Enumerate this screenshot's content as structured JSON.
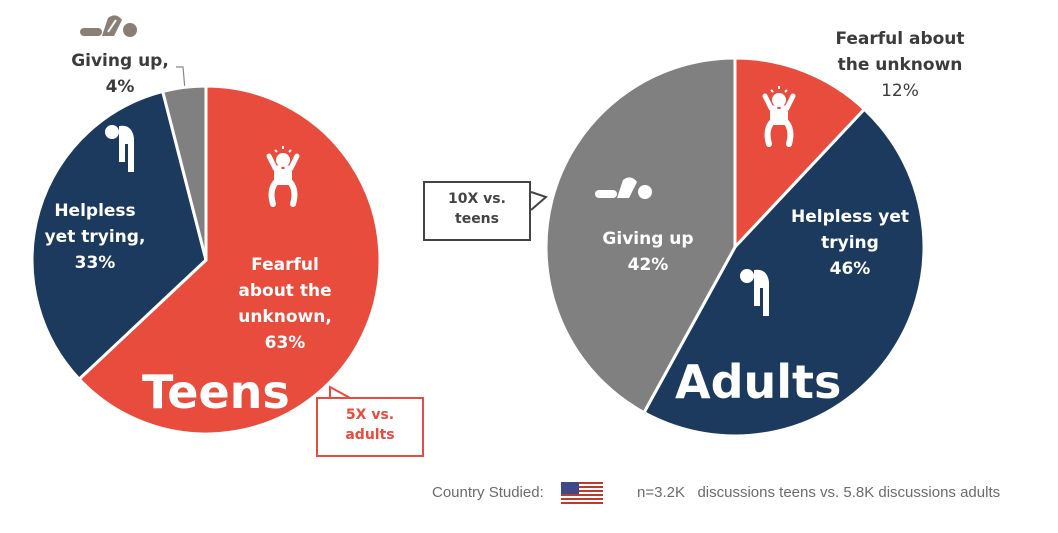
{
  "colors": {
    "fearful": "#E84C3D",
    "helpless": "#1B3A5E",
    "giving_up": "#808080"
  },
  "chart_data": [
    {
      "type": "pie",
      "title": "Teens",
      "categories": [
        "Fearful about the unknown",
        "Helpless yet trying",
        "Giving up"
      ],
      "values": [
        63,
        33,
        4
      ],
      "labels": {
        "fearful": [
          "Fearful",
          "about the",
          "unknown,",
          "63%"
        ],
        "helpless": [
          "Helpless",
          "yet trying,",
          "33%"
        ],
        "giving_up": [
          "Giving up,",
          "4%"
        ]
      },
      "callout": [
        "5X vs.",
        "adults"
      ]
    },
    {
      "type": "pie",
      "title": "Adults",
      "categories": [
        "Fearful about the unknown",
        "Helpless yet trying",
        "Giving up"
      ],
      "values": [
        12,
        46,
        42
      ],
      "labels": {
        "fearful": [
          "Fearful about",
          "the unknown",
          "12%"
        ],
        "helpless": [
          "Helpless yet",
          "trying",
          "46%"
        ],
        "giving_up": [
          "Giving up",
          "42%"
        ]
      },
      "callout": [
        "10X vs.",
        "teens"
      ]
    }
  ],
  "footer": {
    "country_label": "Country Studied:",
    "flag_icon": "us-flag-icon",
    "note": "n=3.2K   discussions teens vs. 5.8K discussions adults"
  }
}
